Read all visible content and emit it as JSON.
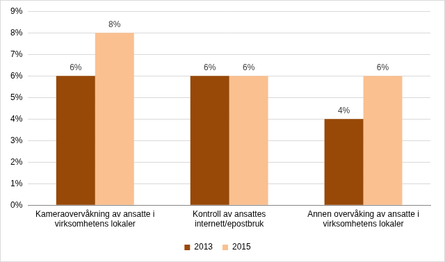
{
  "chart_data": {
    "type": "bar",
    "categories": [
      "Kameraovervåkning av ansatte i virksomhetens lokaler",
      "Kontroll av ansattes internett/epostbruk",
      "Annen overvåking av ansatte i virksomhetens lokaler"
    ],
    "series": [
      {
        "name": "2013",
        "color": "#984807",
        "values": [
          6,
          6,
          4
        ],
        "value_labels": [
          "6%",
          "6%",
          "4%"
        ]
      },
      {
        "name": "2015",
        "color": "#fac090",
        "values": [
          8,
          6,
          6
        ],
        "value_labels": [
          "8%",
          "6%",
          "6%"
        ]
      }
    ],
    "ylim": [
      0,
      9
    ],
    "yticks": [
      {
        "value": 0,
        "label": "0%"
      },
      {
        "value": 1,
        "label": "1%"
      },
      {
        "value": 2,
        "label": "2%"
      },
      {
        "value": 3,
        "label": "3%"
      },
      {
        "value": 4,
        "label": "4%"
      },
      {
        "value": 5,
        "label": "5%"
      },
      {
        "value": 6,
        "label": "6%"
      },
      {
        "value": 7,
        "label": "7%"
      },
      {
        "value": 8,
        "label": "8%"
      },
      {
        "value": 9,
        "label": "9%"
      }
    ],
    "grid": true,
    "legend": "bottom",
    "data_labels": true
  }
}
